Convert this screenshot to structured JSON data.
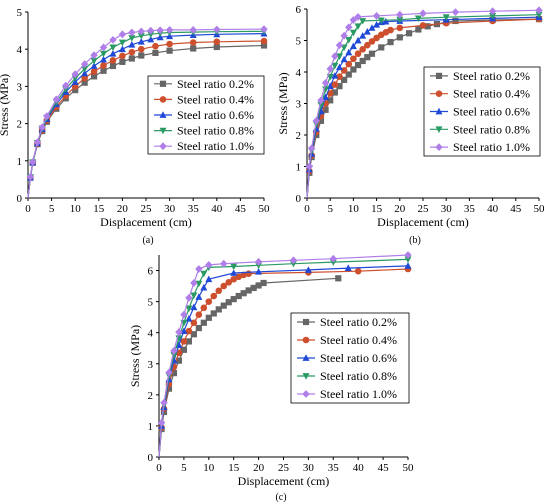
{
  "figure": {
    "captions": [
      "(a)",
      "(b)",
      "(c)"
    ]
  },
  "colors": [
    "#666666",
    "#cd4f2e",
    "#1f49d6",
    "#2a9a64",
    "#b07ee8"
  ],
  "markers": [
    "square",
    "circle",
    "triangle-up",
    "triangle-down",
    "diamond"
  ],
  "chart_data": [
    {
      "type": "line",
      "caption": "(a)",
      "xlabel": "Displacement (cm)",
      "ylabel": "Stress (MPa)",
      "xlim": [
        0,
        50
      ],
      "ylim": [
        0,
        5
      ],
      "xticks": [
        0,
        5,
        10,
        15,
        20,
        25,
        30,
        35,
        40,
        45,
        50
      ],
      "yticks": [
        0,
        1,
        2,
        3,
        4,
        5
      ],
      "legend_position": "center-right",
      "series": [
        {
          "name": "Steel ratio 0.2%",
          "x": [
            0,
            0.5,
            1,
            2,
            3,
            4,
            6,
            8,
            10,
            12,
            14,
            16,
            18,
            20,
            22,
            24,
            27,
            30,
            35,
            40,
            50
          ],
          "y": [
            0,
            0.55,
            0.95,
            1.45,
            1.8,
            2.05,
            2.4,
            2.68,
            2.9,
            3.1,
            3.27,
            3.42,
            3.55,
            3.66,
            3.75,
            3.83,
            3.9,
            3.96,
            4.02,
            4.06,
            4.1
          ]
        },
        {
          "name": "Steel ratio 0.4%",
          "x": [
            0,
            0.5,
            1,
            2,
            3,
            4,
            6,
            8,
            10,
            12,
            14,
            16,
            18,
            20,
            22,
            24,
            27,
            30,
            35,
            40,
            50
          ],
          "y": [
            0,
            0.55,
            0.95,
            1.45,
            1.82,
            2.08,
            2.45,
            2.75,
            3.0,
            3.22,
            3.4,
            3.56,
            3.7,
            3.82,
            3.92,
            4.0,
            4.08,
            4.14,
            4.18,
            4.2,
            4.22
          ]
        },
        {
          "name": "Steel ratio 0.6%",
          "x": [
            0,
            0.5,
            1,
            2,
            3,
            4,
            6,
            8,
            10,
            12,
            14,
            16,
            18,
            20,
            22,
            24,
            26,
            28,
            30,
            35,
            40,
            50
          ],
          "y": [
            0,
            0.55,
            0.95,
            1.47,
            1.85,
            2.12,
            2.52,
            2.85,
            3.12,
            3.35,
            3.55,
            3.72,
            3.88,
            4.0,
            4.12,
            4.2,
            4.26,
            4.32,
            4.35,
            4.38,
            4.4,
            4.42
          ]
        },
        {
          "name": "Steel ratio 0.8%",
          "x": [
            0,
            0.5,
            1,
            2,
            3,
            4,
            6,
            8,
            10,
            12,
            14,
            16,
            18,
            20,
            22,
            24,
            26,
            28,
            30,
            35,
            40,
            50
          ],
          "y": [
            0,
            0.56,
            0.96,
            1.48,
            1.87,
            2.16,
            2.58,
            2.93,
            3.22,
            3.47,
            3.69,
            3.88,
            4.05,
            4.18,
            4.3,
            4.36,
            4.4,
            4.43,
            4.45,
            4.46,
            4.47,
            4.48
          ]
        },
        {
          "name": "Steel ratio 1.0%",
          "x": [
            0,
            0.5,
            1,
            2,
            3,
            4,
            6,
            8,
            10,
            12,
            14,
            16,
            18,
            20,
            22,
            24,
            26,
            28,
            30,
            35,
            40,
            50
          ],
          "y": [
            0,
            0.57,
            0.97,
            1.5,
            1.9,
            2.2,
            2.65,
            3.02,
            3.33,
            3.6,
            3.84,
            4.05,
            4.25,
            4.4,
            4.45,
            4.48,
            4.5,
            4.51,
            4.52,
            4.52,
            4.53,
            4.54
          ]
        }
      ]
    },
    {
      "type": "line",
      "caption": "(b)",
      "xlabel": "Displacement (cm)",
      "ylabel": "Stress (MPa)",
      "xlim": [
        0,
        50
      ],
      "ylim": [
        0,
        6
      ],
      "xticks": [
        0,
        5,
        10,
        15,
        20,
        25,
        30,
        35,
        40,
        45,
        50
      ],
      "yticks": [
        0,
        1,
        2,
        3,
        4,
        5,
        6
      ],
      "legend_position": "center-right",
      "series": [
        {
          "name": "Steel ratio 0.2%",
          "x": [
            0,
            0.5,
            1,
            2,
            3,
            4,
            5,
            6,
            7,
            8,
            9,
            10,
            11,
            12,
            13,
            14,
            16,
            18,
            20,
            22,
            24,
            26,
            28,
            30,
            32,
            40,
            50
          ],
          "y": [
            0,
            0.8,
            1.3,
            2.0,
            2.45,
            2.8,
            3.1,
            3.35,
            3.55,
            3.75,
            3.92,
            4.08,
            4.22,
            4.35,
            4.47,
            4.58,
            4.78,
            4.95,
            5.1,
            5.23,
            5.35,
            5.45,
            5.52,
            5.58,
            5.62,
            5.65,
            5.68
          ]
        },
        {
          "name": "Steel ratio 0.4%",
          "x": [
            0,
            0.5,
            1,
            2,
            3,
            4,
            5,
            6,
            7,
            8,
            9,
            10,
            11,
            12,
            13,
            14,
            15,
            16,
            17,
            18,
            20,
            25,
            30,
            40,
            50
          ],
          "y": [
            0,
            0.85,
            1.35,
            2.1,
            2.6,
            3.0,
            3.32,
            3.6,
            3.85,
            4.05,
            4.25,
            4.42,
            4.58,
            4.72,
            4.85,
            4.97,
            5.08,
            5.18,
            5.26,
            5.33,
            5.4,
            5.48,
            5.55,
            5.62,
            5.68
          ]
        },
        {
          "name": "Steel ratio 0.6%",
          "x": [
            0,
            0.5,
            1,
            2,
            3,
            4,
            5,
            6,
            7,
            8,
            9,
            10,
            11,
            12,
            13,
            14,
            15,
            16,
            17,
            20,
            30,
            40,
            50
          ],
          "y": [
            0,
            0.9,
            1.4,
            2.2,
            2.75,
            3.2,
            3.55,
            3.88,
            4.15,
            4.4,
            4.62,
            4.82,
            5.0,
            5.15,
            5.28,
            5.4,
            5.5,
            5.58,
            5.6,
            5.62,
            5.66,
            5.7,
            5.74
          ]
        },
        {
          "name": "Steel ratio 0.8%",
          "x": [
            0,
            0.5,
            1,
            2,
            3,
            4,
            5,
            6,
            7,
            8,
            9,
            10,
            11,
            12,
            16,
            20,
            24,
            30,
            40,
            50
          ],
          "y": [
            0,
            0.95,
            1.5,
            2.35,
            2.95,
            3.45,
            3.85,
            4.2,
            4.5,
            4.78,
            5.02,
            5.25,
            5.45,
            5.62,
            5.64,
            5.66,
            5.7,
            5.74,
            5.78,
            5.82
          ]
        },
        {
          "name": "Steel ratio 1.0%",
          "x": [
            0,
            0.5,
            1,
            2,
            3,
            4,
            5,
            6,
            7,
            8,
            9,
            10,
            11,
            15,
            20,
            25,
            32,
            40,
            50
          ],
          "y": [
            0,
            1.0,
            1.58,
            2.45,
            3.1,
            3.65,
            4.1,
            4.5,
            4.85,
            5.15,
            5.42,
            5.65,
            5.75,
            5.78,
            5.82,
            5.86,
            5.9,
            5.93,
            5.96
          ]
        }
      ]
    },
    {
      "type": "line",
      "caption": "(c)",
      "xlabel": "Displacement (cm)",
      "ylabel": "Stress (MPa)",
      "xlim": [
        0,
        50
      ],
      "ylim": [
        0,
        6.5
      ],
      "xticks": [
        0,
        5,
        10,
        15,
        20,
        25,
        30,
        35,
        40,
        45,
        50
      ],
      "yticks": [
        0,
        1,
        2,
        3,
        4,
        5,
        6
      ],
      "legend_position": "center-right",
      "series": [
        {
          "name": "Steel ratio 0.2%",
          "x": [
            0,
            0.5,
            1,
            2,
            3,
            4,
            5,
            6,
            7,
            8,
            9,
            10,
            11,
            12,
            13,
            14,
            15,
            16,
            17,
            18,
            19,
            20,
            21,
            36
          ],
          "y": [
            0,
            0.9,
            1.45,
            2.2,
            2.7,
            3.1,
            3.45,
            3.72,
            3.95,
            4.15,
            4.32,
            4.48,
            4.62,
            4.75,
            4.87,
            4.98,
            5.08,
            5.18,
            5.27,
            5.36,
            5.44,
            5.52,
            5.6,
            5.75
          ]
        },
        {
          "name": "Steel ratio 0.4%",
          "x": [
            0,
            0.5,
            1,
            2,
            3,
            4,
            5,
            6,
            7,
            8,
            9,
            10,
            11,
            12,
            13,
            14,
            15,
            16,
            17,
            18,
            30,
            40,
            50
          ],
          "y": [
            0,
            0.95,
            1.55,
            2.35,
            2.9,
            3.35,
            3.72,
            4.05,
            4.32,
            4.58,
            4.8,
            5.0,
            5.18,
            5.35,
            5.5,
            5.62,
            5.72,
            5.8,
            5.86,
            5.9,
            5.94,
            5.98,
            6.05
          ]
        },
        {
          "name": "Steel ratio 0.6%",
          "x": [
            0,
            0.5,
            1,
            2,
            3,
            4,
            5,
            6,
            7,
            8,
            9,
            10,
            15,
            20,
            30,
            38,
            50
          ],
          "y": [
            0,
            1.0,
            1.6,
            2.5,
            3.1,
            3.6,
            4.05,
            4.45,
            4.82,
            5.15,
            5.45,
            5.72,
            5.92,
            5.96,
            6.02,
            6.08,
            6.15
          ]
        },
        {
          "name": "Steel ratio 0.8%",
          "x": [
            0,
            0.5,
            1,
            2,
            3,
            4,
            5,
            6,
            7,
            8,
            9,
            10,
            15,
            20,
            27,
            35,
            50
          ],
          "y": [
            0,
            1.05,
            1.68,
            2.62,
            3.28,
            3.82,
            4.32,
            4.78,
            5.2,
            5.58,
            5.9,
            6.1,
            6.13,
            6.17,
            6.22,
            6.27,
            6.36
          ]
        },
        {
          "name": "Steel ratio 1.0%",
          "x": [
            0,
            0.5,
            1,
            2,
            3,
            4,
            5,
            6,
            7,
            8,
            10,
            13,
            20,
            27,
            35,
            50
          ],
          "y": [
            0,
            1.1,
            1.75,
            2.72,
            3.42,
            4.02,
            4.58,
            5.12,
            5.6,
            6.05,
            6.18,
            6.22,
            6.28,
            6.33,
            6.38,
            6.5
          ]
        }
      ]
    }
  ]
}
